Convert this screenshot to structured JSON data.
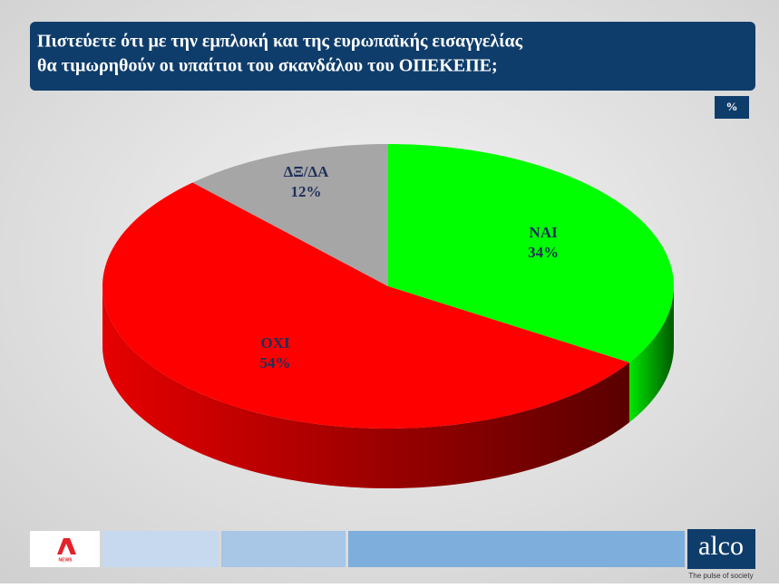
{
  "chart_data": {
    "type": "pie",
    "title": [
      "Πιστεύετε ότι με την εμπλοκή και της ευρωπαϊκής εισαγγελίας",
      "θα τιμωρηθούν οι υπαίτιοι του σκανδάλου του ΟΠΕΚΕΠΕ;"
    ],
    "unit": "%",
    "categories": [
      "ΝΑΙ",
      "ΟΧΙ",
      "ΔΞ/ΔΑ"
    ],
    "values": [
      34,
      54,
      12
    ],
    "value_labels": [
      "34%",
      "54%",
      "12%"
    ],
    "colors": [
      "#00ff00",
      "#ff0000",
      "#a6a6a6"
    ]
  },
  "footer": {
    "news": "NEWS",
    "brand": "alco",
    "tagline": "The pulse of society"
  }
}
